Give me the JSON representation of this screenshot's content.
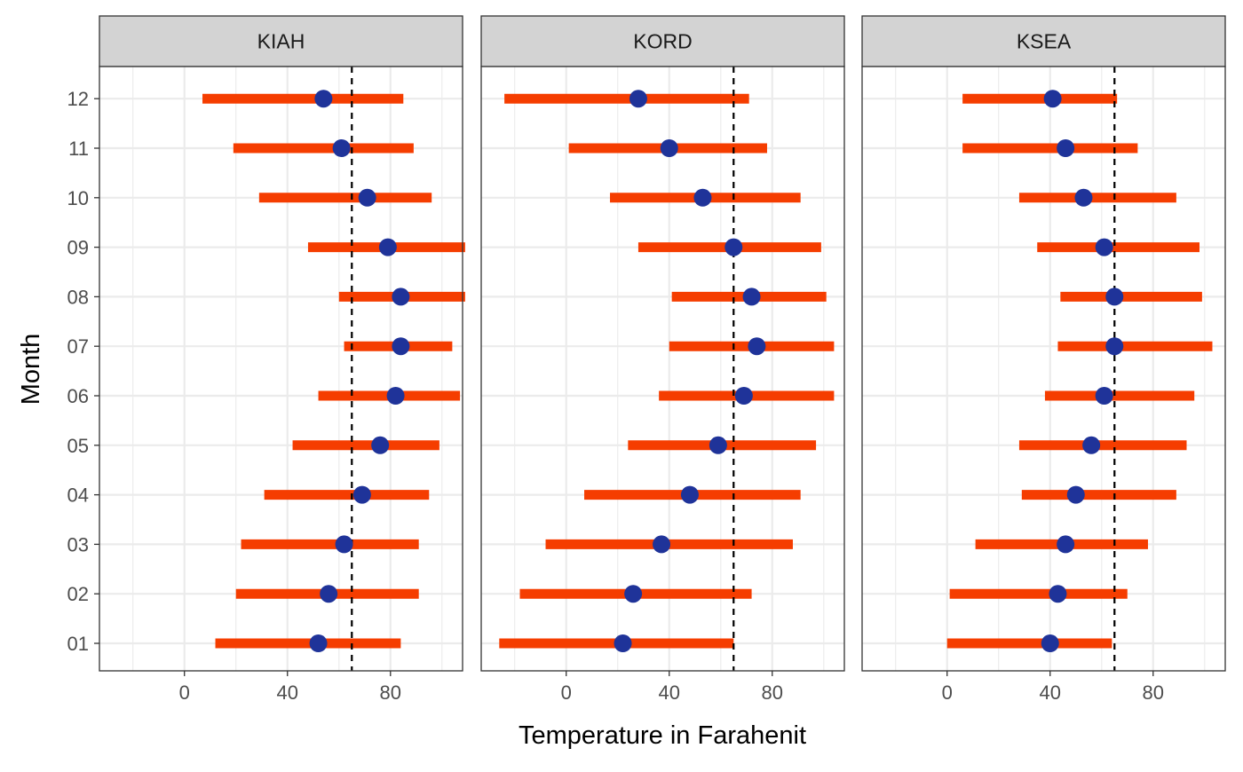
{
  "chart_data": {
    "type": "point-range",
    "xlabel": "Temperature in Farahenit",
    "ylabel": "Month",
    "xlim": [
      -33,
      108
    ],
    "xticks": [
      0,
      40,
      80
    ],
    "reference_line": 65,
    "months": [
      "01",
      "02",
      "03",
      "04",
      "05",
      "06",
      "07",
      "08",
      "09",
      "10",
      "11",
      "12"
    ],
    "colors": {
      "range": "#f53d00",
      "point": "#1f3399",
      "reference": "#000000",
      "strip": "#d3d3d3",
      "grid": "#ebebeb"
    },
    "panels": [
      {
        "name": "KIAH",
        "min": [
          12,
          20,
          22,
          31,
          42,
          52,
          62,
          60,
          48,
          29,
          19,
          7
        ],
        "mean": [
          52,
          56,
          62,
          69,
          76,
          82,
          84,
          84,
          79,
          71,
          61,
          54
        ],
        "max": [
          84,
          91,
          91,
          95,
          99,
          107,
          104,
          109,
          109,
          96,
          89,
          85
        ]
      },
      {
        "name": "KORD",
        "min": [
          -26,
          -18,
          -8,
          7,
          24,
          36,
          40,
          41,
          28,
          17,
          1,
          -24
        ],
        "mean": [
          22,
          26,
          37,
          48,
          59,
          69,
          74,
          72,
          65,
          53,
          40,
          28
        ],
        "max": [
          65,
          72,
          88,
          91,
          97,
          104,
          104,
          101,
          99,
          91,
          78,
          71
        ]
      },
      {
        "name": "KSEA",
        "min": [
          0,
          1,
          11,
          29,
          28,
          38,
          43,
          44,
          35,
          28,
          6,
          6
        ],
        "mean": [
          40,
          43,
          46,
          50,
          56,
          61,
          65,
          65,
          61,
          53,
          46,
          41
        ],
        "max": [
          64,
          70,
          78,
          89,
          93,
          96,
          103,
          99,
          98,
          89,
          74,
          66
        ]
      }
    ]
  }
}
